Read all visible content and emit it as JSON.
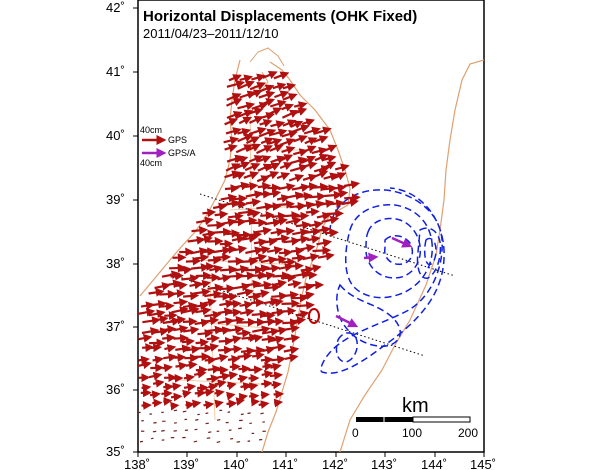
{
  "title": "Horizontal Displacements (OHK Fixed)",
  "period": "2011/04/23–2011/12/10",
  "axes": {
    "lon_ticks": [
      "138˚",
      "139˚",
      "140˚",
      "141˚",
      "142˚",
      "143˚",
      "144˚",
      "145˚"
    ],
    "lat_ticks": [
      "42˚",
      "41˚",
      "40˚",
      "39˚",
      "38˚",
      "37˚",
      "36˚",
      "35˚"
    ]
  },
  "legend": {
    "gps_scale": "40cm",
    "gps_label": "GPS",
    "gpsa_label": "GPS/A",
    "gpsa_scale": "40cm"
  },
  "scale_bar": {
    "unit": "km",
    "ticks": [
      "0",
      "100",
      "200"
    ]
  },
  "colors": {
    "gps_arrow": "#b01010",
    "gpsa_arrow": "#a020c0",
    "coast": "#e0a070",
    "contour": "#1020e0",
    "profile": "#000000"
  }
}
